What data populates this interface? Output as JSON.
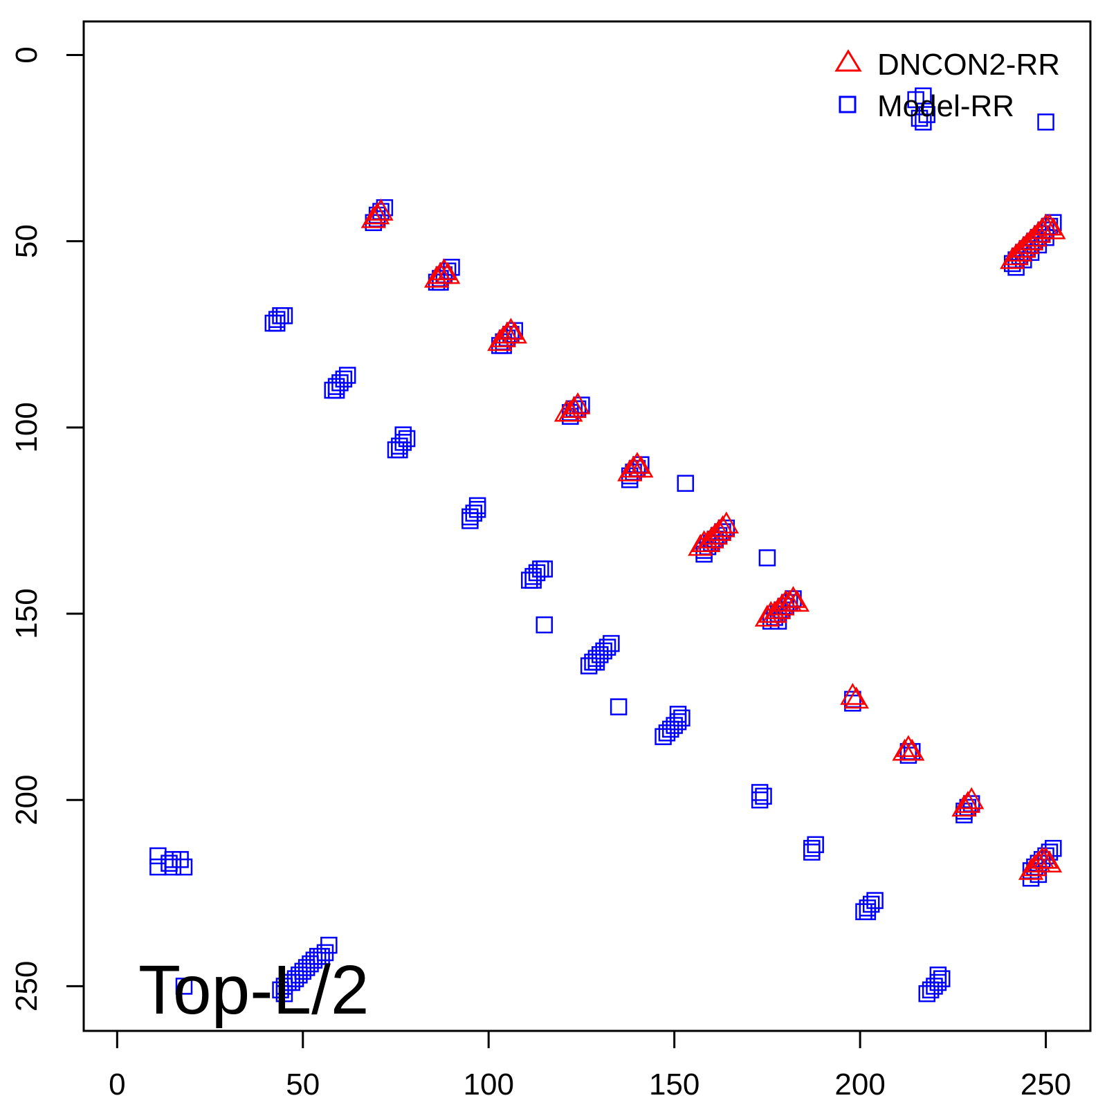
{
  "chart_data": {
    "type": "scatter",
    "title": "",
    "xlabel": "",
    "ylabel": "",
    "xlim": [
      -9,
      262
    ],
    "ylim": [
      262,
      -9
    ],
    "y_reversed": true,
    "x_ticks": [
      0,
      50,
      100,
      150,
      200,
      250
    ],
    "y_ticks": [
      0,
      50,
      100,
      150,
      200,
      250
    ],
    "grid": false,
    "legend_position": "top-right",
    "annotation": "Top-L/2",
    "series": [
      {
        "name": "Model-RR",
        "marker": "square",
        "color": "#0000ff",
        "points": [
          [
            70,
            43
          ],
          [
            71,
            42
          ],
          [
            69,
            45
          ],
          [
            72,
            41
          ],
          [
            70,
            44
          ],
          [
            86,
            61
          ],
          [
            87,
            60
          ],
          [
            88,
            59
          ],
          [
            89,
            58
          ],
          [
            87,
            61
          ],
          [
            90,
            57
          ],
          [
            104,
            77
          ],
          [
            105,
            76
          ],
          [
            103,
            78
          ],
          [
            106,
            75
          ],
          [
            107,
            74
          ],
          [
            104,
            78
          ],
          [
            122,
            96
          ],
          [
            123,
            95
          ],
          [
            124,
            95
          ],
          [
            125,
            94
          ],
          [
            122,
            97
          ],
          [
            138,
            113
          ],
          [
            139,
            112
          ],
          [
            140,
            111
          ],
          [
            141,
            110
          ],
          [
            138,
            114
          ],
          [
            158,
            133
          ],
          [
            159,
            132
          ],
          [
            160,
            131
          ],
          [
            161,
            130
          ],
          [
            162,
            129
          ],
          [
            163,
            128
          ],
          [
            164,
            127
          ],
          [
            158,
            134
          ],
          [
            176,
            152
          ],
          [
            177,
            151
          ],
          [
            178,
            150
          ],
          [
            179,
            149
          ],
          [
            180,
            148
          ],
          [
            181,
            147
          ],
          [
            182,
            146
          ],
          [
            178,
            152
          ],
          [
            198,
            173
          ],
          [
            198,
            174
          ],
          [
            213,
            187
          ],
          [
            214,
            187
          ],
          [
            213,
            188
          ],
          [
            228,
            203
          ],
          [
            229,
            202
          ],
          [
            230,
            201
          ],
          [
            228,
            204
          ],
          [
            246,
            219
          ],
          [
            247,
            218
          ],
          [
            248,
            217
          ],
          [
            249,
            216
          ],
          [
            250,
            215
          ],
          [
            251,
            214
          ],
          [
            252,
            213
          ],
          [
            248,
            220
          ],
          [
            246,
            221
          ],
          [
            241,
            56
          ],
          [
            242,
            55
          ],
          [
            243,
            54
          ],
          [
            244,
            53
          ],
          [
            245,
            52
          ],
          [
            246,
            51
          ],
          [
            247,
            50
          ],
          [
            248,
            49
          ],
          [
            249,
            48
          ],
          [
            250,
            47
          ],
          [
            251,
            46
          ],
          [
            252,
            45
          ],
          [
            242,
            57
          ],
          [
            244,
            55
          ],
          [
            246,
            53
          ],
          [
            248,
            51
          ],
          [
            250,
            49
          ],
          [
            215,
            12
          ],
          [
            217,
            11
          ],
          [
            216,
            17
          ],
          [
            218,
            16
          ],
          [
            217,
            18
          ],
          [
            250,
            18
          ],
          [
            42,
            72
          ],
          [
            43,
            71
          ],
          [
            44,
            70
          ],
          [
            45,
            70
          ],
          [
            43,
            72
          ],
          [
            58,
            90
          ],
          [
            59,
            89
          ],
          [
            60,
            88
          ],
          [
            61,
            87
          ],
          [
            62,
            86
          ],
          [
            59,
            90
          ],
          [
            75,
            106
          ],
          [
            76,
            105
          ],
          [
            77,
            104
          ],
          [
            78,
            103
          ],
          [
            77,
            102
          ],
          [
            76,
            106
          ],
          [
            95,
            124
          ],
          [
            96,
            123
          ],
          [
            97,
            122
          ],
          [
            97,
            121
          ],
          [
            95,
            125
          ],
          [
            111,
            141
          ],
          [
            112,
            140
          ],
          [
            113,
            139
          ],
          [
            114,
            138
          ],
          [
            115,
            138
          ],
          [
            112,
            141
          ],
          [
            115,
            153
          ],
          [
            153,
            115
          ],
          [
            175,
            135
          ],
          [
            135,
            175
          ],
          [
            18,
            250
          ],
          [
            127,
            164
          ],
          [
            128,
            163
          ],
          [
            129,
            162
          ],
          [
            130,
            161
          ],
          [
            131,
            160
          ],
          [
            132,
            159
          ],
          [
            133,
            158
          ],
          [
            129,
            163
          ],
          [
            147,
            183
          ],
          [
            148,
            182
          ],
          [
            149,
            181
          ],
          [
            150,
            180
          ],
          [
            151,
            179
          ],
          [
            152,
            178
          ],
          [
            151,
            177
          ],
          [
            173,
            198
          ],
          [
            174,
            199
          ],
          [
            173,
            200
          ],
          [
            187,
            213
          ],
          [
            188,
            212
          ],
          [
            187,
            214
          ],
          [
            201,
            230
          ],
          [
            202,
            229
          ],
          [
            203,
            228
          ],
          [
            204,
            227
          ],
          [
            202,
            230
          ],
          [
            218,
            252
          ],
          [
            219,
            251
          ],
          [
            220,
            250
          ],
          [
            221,
            249
          ],
          [
            222,
            248
          ],
          [
            221,
            247
          ],
          [
            11,
            215
          ],
          [
            11,
            218
          ],
          [
            14,
            217
          ],
          [
            15,
            216
          ],
          [
            17,
            216
          ],
          [
            18,
            218
          ],
          [
            15,
            218
          ],
          [
            44,
            251
          ],
          [
            45,
            250
          ],
          [
            46,
            249
          ],
          [
            47,
            249
          ],
          [
            48,
            248
          ],
          [
            49,
            247
          ],
          [
            50,
            246
          ],
          [
            51,
            245
          ],
          [
            52,
            244
          ],
          [
            53,
            243
          ],
          [
            54,
            242
          ],
          [
            55,
            242
          ],
          [
            56,
            241
          ],
          [
            57,
            239
          ],
          [
            45,
            252
          ]
        ]
      },
      {
        "name": "DNCON2-RR",
        "marker": "triangle",
        "color": "#ff0000",
        "points": [
          [
            69,
            44
          ],
          [
            70,
            43
          ],
          [
            71,
            42
          ],
          [
            86,
            60
          ],
          [
            87,
            59
          ],
          [
            88,
            58
          ],
          [
            89,
            59
          ],
          [
            103,
            77
          ],
          [
            104,
            76
          ],
          [
            105,
            75
          ],
          [
            106,
            74
          ],
          [
            107,
            75
          ],
          [
            121,
            96
          ],
          [
            122,
            96
          ],
          [
            123,
            95
          ],
          [
            124,
            94
          ],
          [
            138,
            112
          ],
          [
            139,
            111
          ],
          [
            140,
            110
          ],
          [
            141,
            111
          ],
          [
            157,
            132
          ],
          [
            158,
            131
          ],
          [
            159,
            131
          ],
          [
            160,
            130
          ],
          [
            161,
            129
          ],
          [
            162,
            128
          ],
          [
            163,
            127
          ],
          [
            164,
            126
          ],
          [
            175,
            151
          ],
          [
            176,
            150
          ],
          [
            177,
            150
          ],
          [
            178,
            149
          ],
          [
            179,
            148
          ],
          [
            180,
            147
          ],
          [
            181,
            147
          ],
          [
            182,
            146
          ],
          [
            183,
            147
          ],
          [
            198,
            172
          ],
          [
            199,
            173
          ],
          [
            212,
            187
          ],
          [
            213,
            186
          ],
          [
            214,
            187
          ],
          [
            228,
            202
          ],
          [
            229,
            201
          ],
          [
            230,
            200
          ],
          [
            246,
            219
          ],
          [
            247,
            218
          ],
          [
            248,
            217
          ],
          [
            249,
            216
          ],
          [
            250,
            216
          ],
          [
            251,
            217
          ],
          [
            241,
            55
          ],
          [
            242,
            54
          ],
          [
            243,
            53
          ],
          [
            244,
            52
          ],
          [
            245,
            51
          ],
          [
            246,
            50
          ],
          [
            247,
            49
          ],
          [
            248,
            48
          ],
          [
            249,
            47
          ],
          [
            250,
            46
          ],
          [
            251,
            46
          ],
          [
            252,
            47
          ]
        ]
      }
    ]
  }
}
